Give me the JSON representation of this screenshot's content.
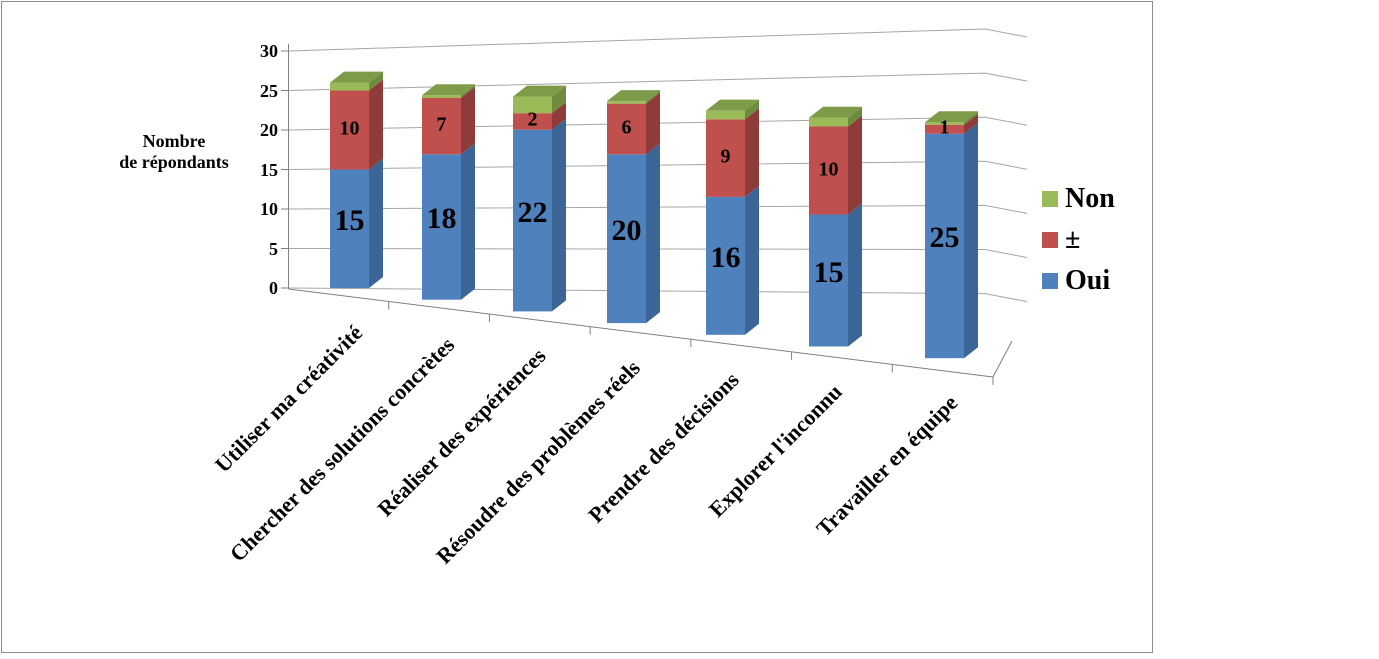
{
  "chart_data": {
    "type": "bar",
    "variant": "3d-stacked-column",
    "title": "",
    "y_axis": {
      "title_lines": [
        "Nombre",
        "de répondants"
      ],
      "min": 0,
      "max": 30,
      "step": 5,
      "ticks": [
        "0",
        "5",
        "10",
        "15",
        "20",
        "25",
        "30"
      ],
      "grid": true
    },
    "categories": [
      "Utiliser ma créativité",
      "Chercher des solutions concrètes",
      "Réaliser des expériences",
      "Résoudre des problèmes réels",
      "Prendre des décisions",
      "Explorer l'inconnu",
      "Travailler en équipe"
    ],
    "series": [
      {
        "name": "Oui",
        "color": "#4F81BD",
        "values": [
          15,
          18,
          22,
          20,
          16,
          15,
          25
        ]
      },
      {
        "name": "±",
        "color": "#C0504D",
        "values": [
          10,
          7,
          2,
          6,
          9,
          10,
          1
        ]
      },
      {
        "name": "Non",
        "color": "#9BBB59",
        "values": [
          1,
          0,
          2,
          0,
          1,
          1,
          0
        ]
      }
    ],
    "data_labels_shown_for": [
      "Oui",
      "±"
    ],
    "legend": {
      "position": "right",
      "entries": [
        "Non",
        "±",
        "Oui"
      ]
    },
    "colors": {
      "oui_front": "#4F81BD",
      "oui_side": "#3B6597",
      "pm_front": "#C0504D",
      "pm_side": "#8F3B39",
      "non_front": "#9BBB59",
      "non_side": "#6F8C3E",
      "non_top": "#7D9B49",
      "gridline": "#A6A6A6",
      "axis": "#808080",
      "frame": "#8C8C8C"
    }
  }
}
